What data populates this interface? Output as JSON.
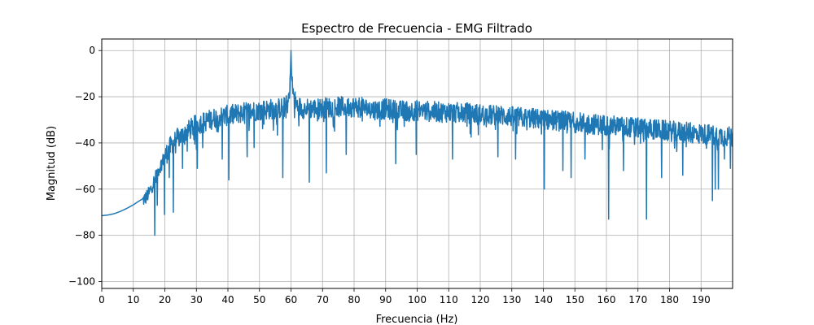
{
  "chart_data": {
    "type": "line",
    "title": "Espectro de Frecuencia - EMG Filtrado",
    "xlabel": "Frecuencia (Hz)",
    "ylabel": "Magnitud (dB)",
    "xlim": [
      0,
      200
    ],
    "ylim": [
      -103,
      5
    ],
    "x_ticks": [
      0,
      10,
      20,
      30,
      40,
      50,
      60,
      70,
      80,
      90,
      100,
      110,
      120,
      130,
      140,
      150,
      160,
      170,
      180,
      190
    ],
    "y_ticks": [
      0,
      -20,
      -40,
      -60,
      -80,
      -100
    ],
    "grid": true,
    "line_color": "#1f77b4",
    "series": [
      {
        "x": [
          0,
          2,
          4,
          6,
          8,
          10,
          12,
          13,
          14,
          15,
          16,
          17,
          18,
          19,
          20,
          22,
          24,
          26,
          28,
          30,
          32,
          34,
          36,
          38,
          40,
          42,
          44,
          46,
          48,
          50,
          52,
          54,
          56,
          58,
          59,
          59.8,
          60,
          60.2,
          61,
          62,
          64,
          66,
          68,
          70,
          72,
          74,
          76,
          78,
          80,
          82,
          84,
          86,
          88,
          90,
          92,
          94,
          96,
          98,
          100,
          102,
          104,
          106,
          108,
          110,
          112,
          114,
          116,
          118,
          120,
          122,
          124,
          126,
          128,
          130,
          132,
          134,
          136,
          138,
          140,
          142,
          144,
          146,
          148,
          150,
          152,
          154,
          156,
          158,
          160,
          162,
          164,
          166,
          168,
          170,
          172,
          174,
          176,
          178,
          180,
          182,
          184,
          186,
          188,
          190,
          192,
          194,
          196,
          198,
          200
        ],
        "values": [
          -71.5,
          -71.2,
          -70.6,
          -69.6,
          -68.3,
          -66.8,
          -65,
          -64.2,
          -63,
          -61,
          -58,
          -54,
          -51,
          -48,
          -45,
          -40,
          -37,
          -35,
          -33,
          -31,
          -30,
          -29,
          -28,
          -27.5,
          -27,
          -26.5,
          -26,
          -25.5,
          -25,
          -24.8,
          -24.5,
          -24.2,
          -24,
          -23.5,
          -22,
          -10,
          0,
          -12,
          -20,
          -23,
          -24,
          -24,
          -24,
          -23.8,
          -23.5,
          -23.5,
          -23.3,
          -23.2,
          -23.3,
          -23.5,
          -24,
          -24.5,
          -24.5,
          -24.2,
          -24.5,
          -25,
          -25,
          -25,
          -24.8,
          -25,
          -25.3,
          -25.5,
          -25.6,
          -25.5,
          -25.8,
          -26,
          -26,
          -26.2,
          -26.5,
          -26.8,
          -27,
          -27,
          -27.2,
          -27.5,
          -27.8,
          -28,
          -28.2,
          -28.5,
          -28.8,
          -29,
          -29.2,
          -29.5,
          -29.8,
          -30,
          -30.2,
          -30.5,
          -30.8,
          -31,
          -31.2,
          -31.5,
          -31.8,
          -32,
          -32.2,
          -32.5,
          -32.8,
          -33,
          -33.2,
          -33.5,
          -33.8,
          -34,
          -34.2,
          -34.5,
          -34.8,
          -35,
          -35.2,
          -35.5,
          -35.8,
          -36,
          -36.5
        ]
      }
    ],
    "noise_floor_above_hz": 13,
    "notches": [
      {
        "x": 16.8,
        "y": -80
      },
      {
        "x": 17.6,
        "y": -67
      },
      {
        "x": 19.9,
        "y": -71
      },
      {
        "x": 21.4,
        "y": -55
      },
      {
        "x": 22.7,
        "y": -70
      },
      {
        "x": 25.6,
        "y": -51
      },
      {
        "x": 30.3,
        "y": -51
      },
      {
        "x": 38.2,
        "y": -47
      },
      {
        "x": 40.3,
        "y": -56
      },
      {
        "x": 46.1,
        "y": -46
      },
      {
        "x": 48.3,
        "y": -42
      },
      {
        "x": 57.4,
        "y": -55
      },
      {
        "x": 65.8,
        "y": -57
      },
      {
        "x": 71.2,
        "y": -53
      },
      {
        "x": 77.5,
        "y": -45
      },
      {
        "x": 93.2,
        "y": -49
      },
      {
        "x": 99.7,
        "y": -45
      },
      {
        "x": 111.2,
        "y": -47
      },
      {
        "x": 125.6,
        "y": -46
      },
      {
        "x": 131.2,
        "y": -47
      },
      {
        "x": 140.3,
        "y": -60
      },
      {
        "x": 146.2,
        "y": -52
      },
      {
        "x": 148.8,
        "y": -55
      },
      {
        "x": 153.2,
        "y": -47
      },
      {
        "x": 160.7,
        "y": -73
      },
      {
        "x": 165.4,
        "y": -52
      },
      {
        "x": 172.7,
        "y": -73
      },
      {
        "x": 177.5,
        "y": -55
      },
      {
        "x": 184.2,
        "y": -54
      },
      {
        "x": 193.6,
        "y": -65
      },
      {
        "x": 194.5,
        "y": -60
      },
      {
        "x": 195.5,
        "y": -60
      },
      {
        "x": 197.4,
        "y": -47
      },
      {
        "x": 199.3,
        "y": -51
      }
    ]
  }
}
